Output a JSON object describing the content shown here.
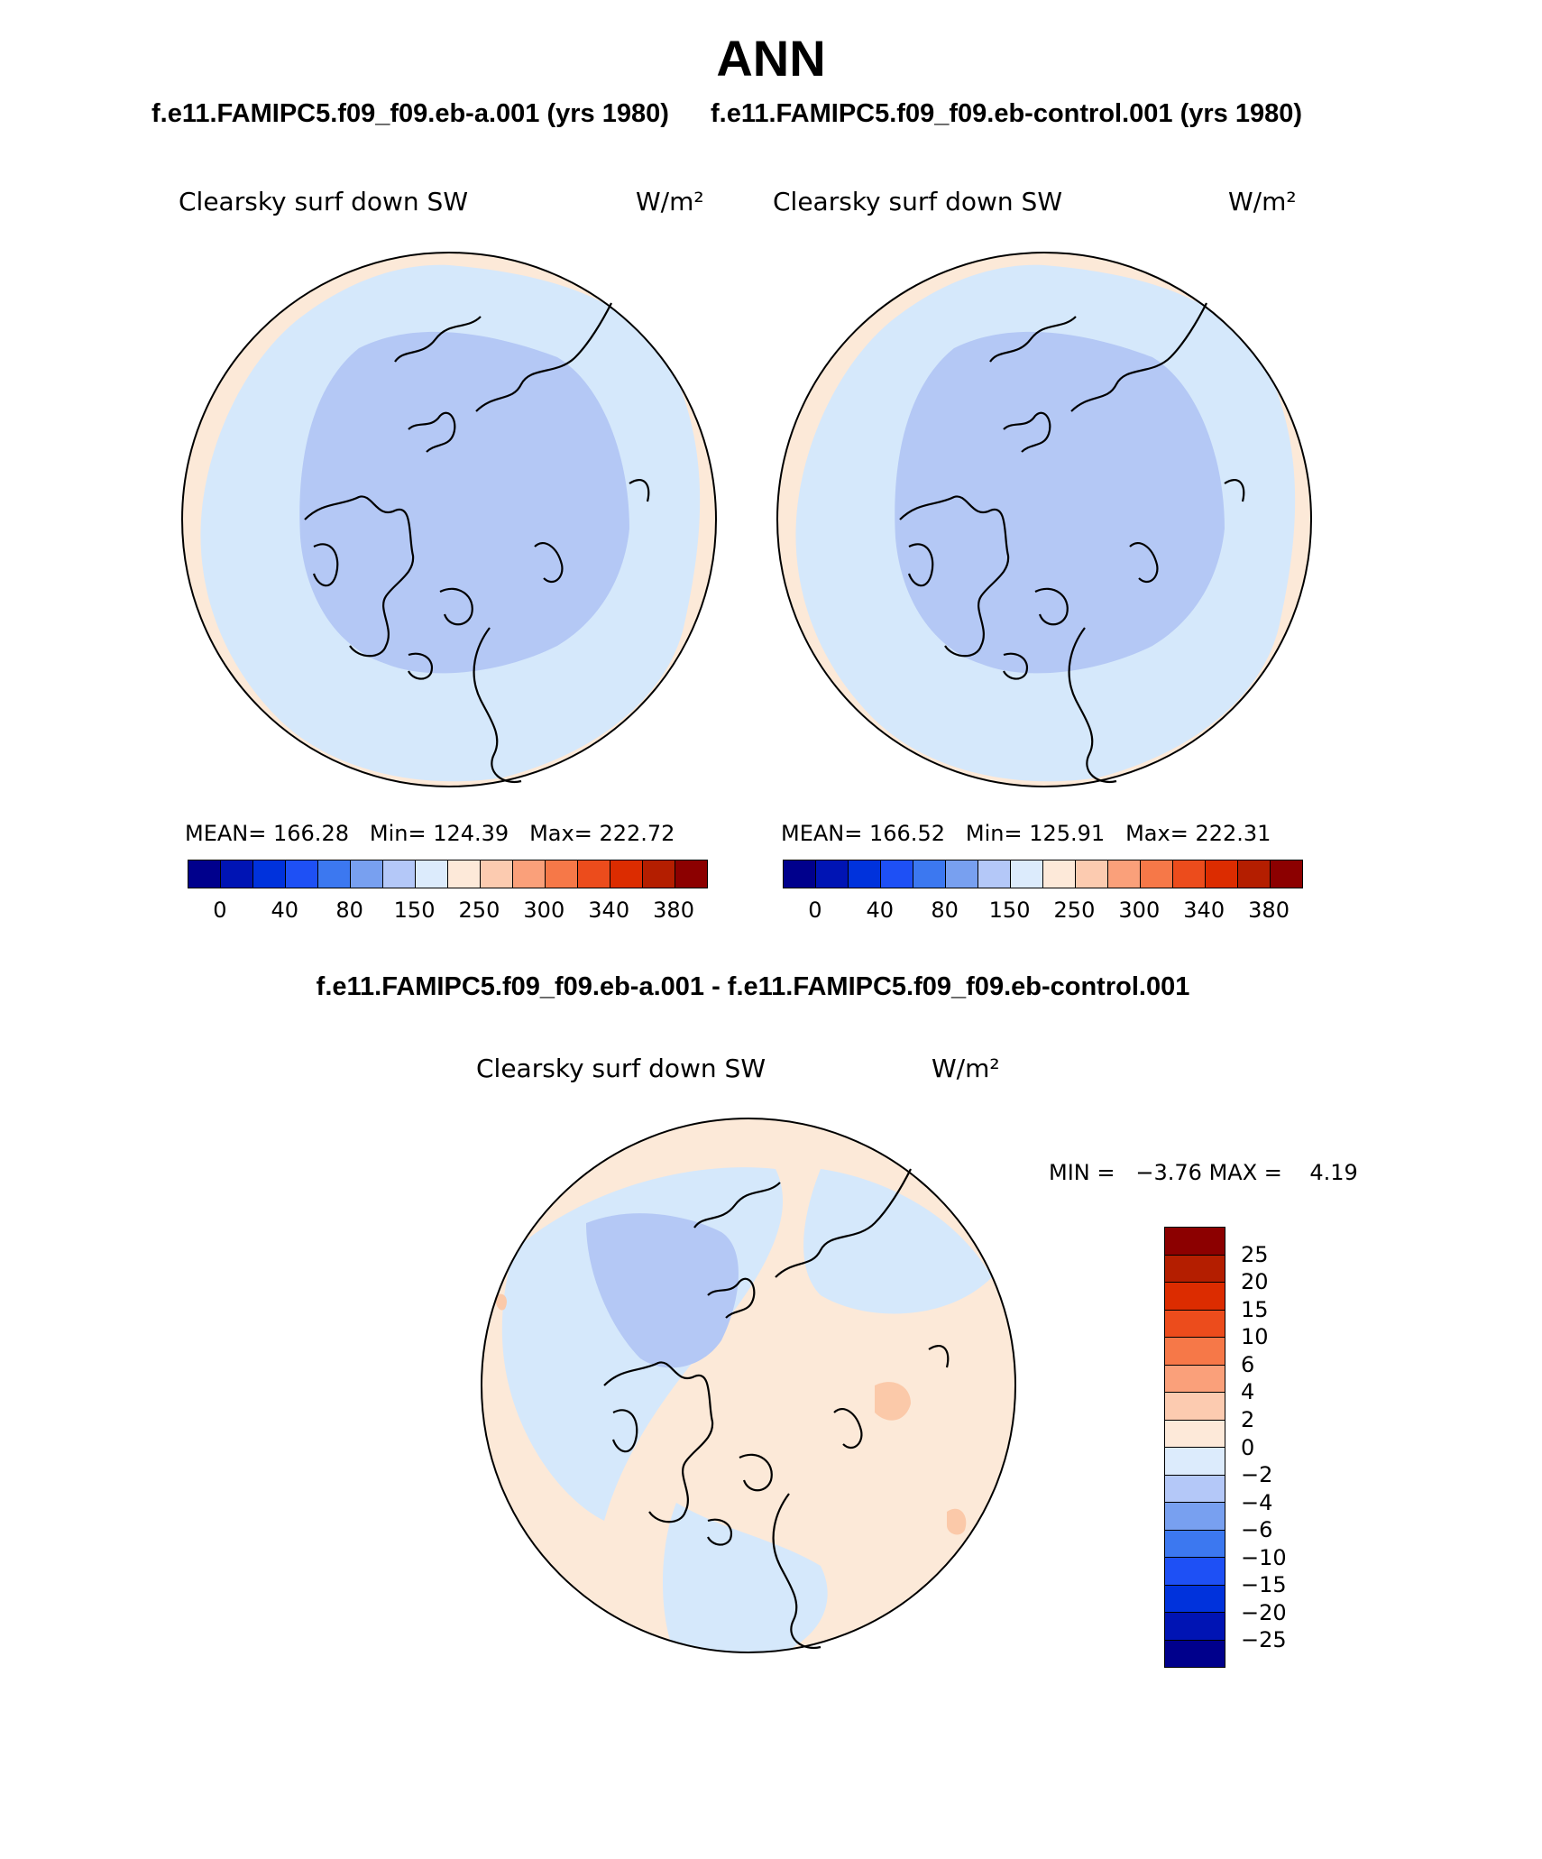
{
  "title": "ANN",
  "panel_a": {
    "case_title": "f.e11.FAMIPC5.f09_f09.eb-a.001 (yrs 1980)",
    "variable": "Clearsky surf down SW",
    "units": "W/m²",
    "mean_label": "MEAN=",
    "mean": "166.28",
    "min_label": "Min=",
    "min": "124.39",
    "max_label": "Max=",
    "max": "222.72",
    "colorbar_ticks": [
      "0",
      "40",
      "80",
      "150",
      "250",
      "300",
      "340",
      "380"
    ]
  },
  "panel_b": {
    "case_title": "f.e11.FAMIPC5.f09_f09.eb-control.001 (yrs 1980)",
    "variable": "Clearsky surf down SW",
    "units": "W/m²",
    "mean_label": "MEAN=",
    "mean": "166.52",
    "min_label": "Min=",
    "min": "125.91",
    "max_label": "Max=",
    "max": "222.31",
    "colorbar_ticks": [
      "0",
      "40",
      "80",
      "150",
      "250",
      "300",
      "340",
      "380"
    ]
  },
  "panel_diff": {
    "case_title": "f.e11.FAMIPC5.f09_f09.eb-a.001 - f.e11.FAMIPC5.f09_f09.eb-control.001",
    "variable": "Clearsky surf down SW",
    "units": "W/m²",
    "min_label": "MIN =",
    "min": "−3.76",
    "max_label": "MAX =",
    "max": "4.19",
    "colorbar_ticks": [
      "25",
      "20",
      "15",
      "10",
      "6",
      "4",
      "2",
      "0",
      "−2",
      "−4",
      "−6",
      "−10",
      "−15",
      "−20",
      "−25"
    ]
  },
  "colors": {
    "colorbar_16": [
      "#00008c",
      "#0014b4",
      "#0032dc",
      "#1e50f5",
      "#3c78f0",
      "#78a0f0",
      "#b4c8f8",
      "#dcebfc",
      "#fde9d9",
      "#fccbb0",
      "#faa07a",
      "#f67848",
      "#ec4c1c",
      "#dc2c00",
      "#b41e00",
      "#8c0000"
    ],
    "polar_light_blue": "#d5e8fb",
    "polar_mid_blue": "#b4c8f5",
    "polar_peach": "#fce9d8",
    "polar_salmon": "#fbc9a9"
  }
}
